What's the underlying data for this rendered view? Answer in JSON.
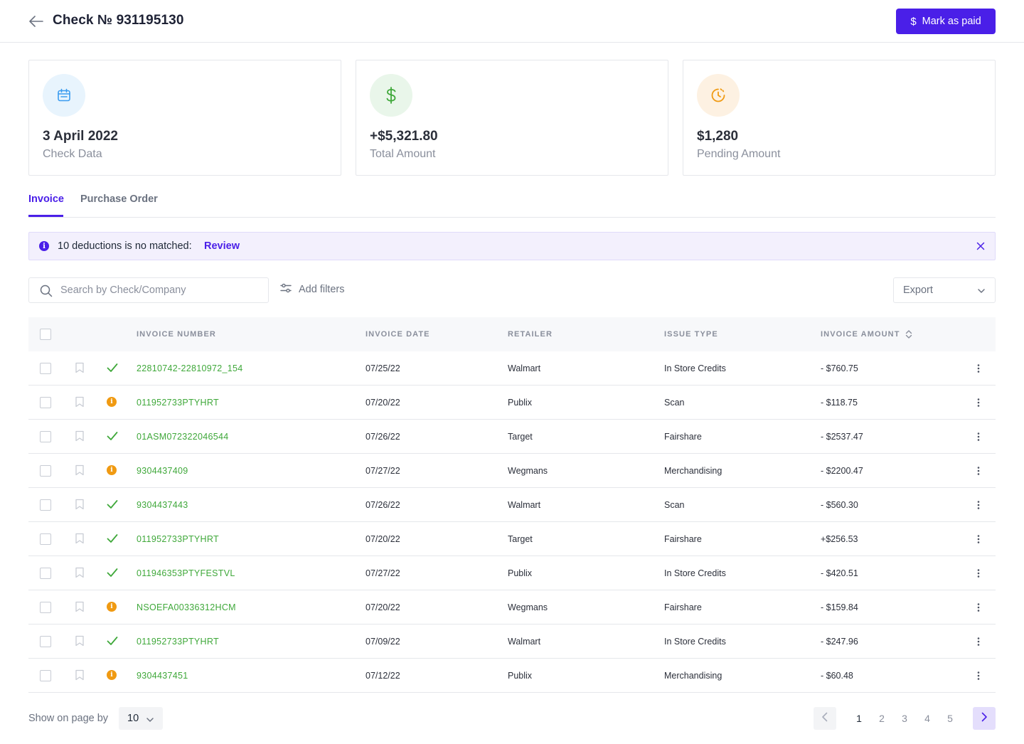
{
  "header": {
    "title": "Check № 931195130",
    "mark_paid_label": "Mark as paid",
    "mark_paid_icon": "$"
  },
  "cards": [
    {
      "icon": "calendar-icon",
      "value": "3 April 2022",
      "label": "Check Data",
      "color": "#3b9cf0",
      "bg": "#e8f4fd"
    },
    {
      "icon": "dollar-icon",
      "value": "+$5,321.80",
      "label": "Total Amount",
      "color": "#3fa83a",
      "bg": "#e9f6ea"
    },
    {
      "icon": "clock-icon",
      "value": "$1,280",
      "label": "Pending Amount",
      "color": "#f09a12",
      "bg": "#fdf1e2"
    }
  ],
  "tabs": [
    {
      "label": "Invoice",
      "active": true
    },
    {
      "label": "Purchase Order",
      "active": false
    }
  ],
  "alert": {
    "message": "10 deductions is no matched:",
    "action": "Review",
    "icon": "i"
  },
  "toolbar": {
    "search_placeholder": "Search by Check/Company",
    "filters_label": "Add filters",
    "export_label": "Export"
  },
  "table": {
    "columns": [
      "INVOICE NUMBER",
      "INVOICE DATE",
      "RETAILER",
      "ISSUE TYPE",
      "INVOICE AMOUNT"
    ],
    "rows": [
      {
        "status": "matched",
        "invoice": "22810742-22810972_154",
        "date": "07/25/22",
        "retailer": "Walmart",
        "issue": "In Store Credits",
        "amount": "- $760.75"
      },
      {
        "status": "warning",
        "invoice": "011952733PTYHRT",
        "date": "07/20/22",
        "retailer": "Publix",
        "issue": "Scan",
        "amount": "- $118.75"
      },
      {
        "status": "matched",
        "invoice": "01ASM072322046544",
        "date": "07/26/22",
        "retailer": "Target",
        "issue": "Fairshare",
        "amount": "- $2537.47"
      },
      {
        "status": "warning",
        "invoice": "9304437409",
        "date": "07/27/22",
        "retailer": "Wegmans",
        "issue": "Merchandising",
        "amount": "- $2200.47"
      },
      {
        "status": "matched",
        "invoice": "9304437443",
        "date": "07/26/22",
        "retailer": "Walmart",
        "issue": "Scan",
        "amount": "- $560.30"
      },
      {
        "status": "matched",
        "invoice": "011952733PTYHRT",
        "date": "07/20/22",
        "retailer": "Target",
        "issue": "Fairshare",
        "amount": "+$256.53"
      },
      {
        "status": "matched",
        "invoice": "011946353PTYFESTVL",
        "date": "07/27/22",
        "retailer": "Publix",
        "issue": "In Store Credits",
        "amount": "- $420.51"
      },
      {
        "status": "warning",
        "invoice": "NSOEFA00336312HCM",
        "date": "07/20/22",
        "retailer": "Wegmans",
        "issue": "Fairshare",
        "amount": "- $159.84"
      },
      {
        "status": "matched",
        "invoice": "011952733PTYHRT",
        "date": "07/09/22",
        "retailer": "Walmart",
        "issue": "In Store Credits",
        "amount": "- $247.96"
      },
      {
        "status": "warning",
        "invoice": "9304437451",
        "date": "07/12/22",
        "retailer": "Publix",
        "issue": "Merchandising",
        "amount": "- $60.48"
      }
    ]
  },
  "footer": {
    "page_size_label": "Show on page by",
    "page_size": "10",
    "pages": [
      "1",
      "2",
      "3",
      "4",
      "5"
    ],
    "current_page": "1"
  },
  "colors": {
    "accent": "#4a1fe8",
    "matched": "#3fa83a",
    "warning": "#f09a12"
  }
}
